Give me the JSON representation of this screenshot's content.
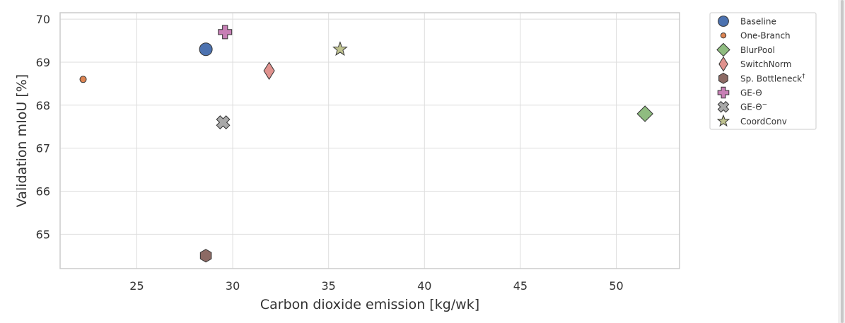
{
  "chart_data": {
    "type": "scatter",
    "title": "",
    "xlabel": "Carbon dioxide emission [kg/wk]",
    "ylabel": "Validation mIoU [%]",
    "xlim": [
      21,
      53.3
    ],
    "ylim": [
      64.2,
      70.15
    ],
    "xticks": [
      25,
      30,
      35,
      40,
      45,
      50
    ],
    "yticks": [
      65,
      66,
      67,
      68,
      69,
      70
    ],
    "grid": true,
    "legend_position": "outside-right-top",
    "series": [
      {
        "name": "Baseline",
        "marker": "circle",
        "color": "#4c72b0",
        "x": [
          28.6
        ],
        "y": [
          69.3
        ]
      },
      {
        "name": "One-Branch",
        "marker": "small-circle",
        "color": "#dd8452",
        "x": [
          22.2
        ],
        "y": [
          68.6
        ]
      },
      {
        "name": "BlurPool",
        "marker": "diamond",
        "color": "#8fbc80",
        "x": [
          51.5
        ],
        "y": [
          67.8
        ]
      },
      {
        "name": "SwitchNorm",
        "marker": "thin-diamond",
        "color": "#e0928e",
        "x": [
          31.9
        ],
        "y": [
          68.8
        ]
      },
      {
        "name": "Sp. Bottleneck",
        "name_sup": "†",
        "marker": "hexagon",
        "color": "#8c6a64",
        "x": [
          28.6
        ],
        "y": [
          64.5
        ]
      },
      {
        "name": "GE-Θ",
        "name_sup": "",
        "marker": "plus",
        "color": "#c77fb5",
        "x": [
          29.6
        ],
        "y": [
          69.7
        ]
      },
      {
        "name": "GE-Θ",
        "name_sup": "−",
        "marker": "x",
        "color": "#a8a8a8",
        "x": [
          29.5
        ],
        "y": [
          67.6
        ]
      },
      {
        "name": "CoordConv",
        "marker": "star",
        "color": "#bfc28f",
        "x": [
          35.6
        ],
        "y": [
          69.3
        ]
      }
    ]
  },
  "ui": {
    "scrollbar": "vertical-scrollbar"
  }
}
